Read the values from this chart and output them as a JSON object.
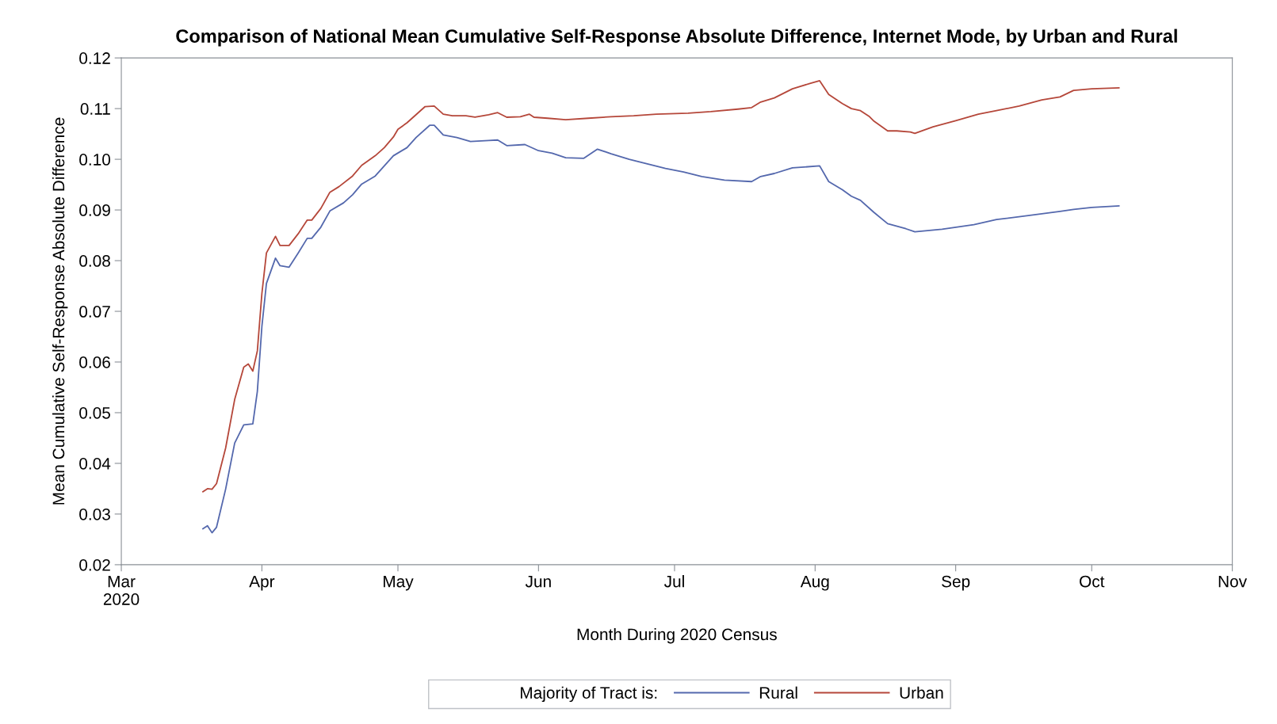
{
  "chart_data": {
    "type": "line",
    "title": "Comparison of National Mean Cumulative Self-Response Absolute Difference, Internet Mode, by Urban and Rural",
    "xlabel": "Month During 2020 Census",
    "ylabel": "Mean Cumulative Self-Response Absolute Difference",
    "legend_title": "Majority of Tract is:",
    "legend": "bottom",
    "grid": false,
    "marker": "none",
    "line_style": "solid",
    "xlim": [
      "2020-03-01",
      "2020-11-01"
    ],
    "xticks": [
      {
        "value": "2020-03-01",
        "label": "Mar\n2020"
      },
      {
        "value": "2020-04-01",
        "label": "Apr"
      },
      {
        "value": "2020-05-01",
        "label": "May"
      },
      {
        "value": "2020-06-01",
        "label": "Jun"
      },
      {
        "value": "2020-07-01",
        "label": "Jul"
      },
      {
        "value": "2020-08-01",
        "label": "Aug"
      },
      {
        "value": "2020-09-01",
        "label": "Sep"
      },
      {
        "value": "2020-10-01",
        "label": "Oct"
      },
      {
        "value": "2020-11-01",
        "label": "Nov"
      }
    ],
    "ylim": [
      0.02,
      0.12
    ],
    "yticks": [
      0.02,
      0.03,
      0.04,
      0.05,
      0.06,
      0.07,
      0.08,
      0.09,
      {
        "value": 0.1,
        "label": "0.10"
      },
      0.11,
      0.12
    ],
    "series": [
      {
        "name": "Rural",
        "color": "#5468ad",
        "x": [
          "2020-03-19",
          "2020-03-20",
          "2020-03-21",
          "2020-03-22",
          "2020-03-24",
          "2020-03-26",
          "2020-03-28",
          "2020-03-30",
          "2020-03-31",
          "2020-04-01",
          "2020-04-02",
          "2020-04-04",
          "2020-04-05",
          "2020-04-07",
          "2020-04-09",
          "2020-04-11",
          "2020-04-12",
          "2020-04-14",
          "2020-04-16",
          "2020-04-19",
          "2020-04-21",
          "2020-04-23",
          "2020-04-26",
          "2020-04-28",
          "2020-04-30",
          "2020-05-03",
          "2020-05-05",
          "2020-05-08",
          "2020-05-09",
          "2020-05-11",
          "2020-05-14",
          "2020-05-17",
          "2020-05-21",
          "2020-05-23",
          "2020-05-25",
          "2020-05-29",
          "2020-06-01",
          "2020-06-04",
          "2020-06-07",
          "2020-06-11",
          "2020-06-14",
          "2020-06-17",
          "2020-06-21",
          "2020-06-25",
          "2020-06-29",
          "2020-07-03",
          "2020-07-07",
          "2020-07-12",
          "2020-07-18",
          "2020-07-20",
          "2020-07-23",
          "2020-07-27",
          "2020-08-02",
          "2020-08-04",
          "2020-08-07",
          "2020-08-09",
          "2020-08-11",
          "2020-08-14",
          "2020-08-17",
          "2020-08-21",
          "2020-08-23",
          "2020-08-29",
          "2020-09-05",
          "2020-09-10",
          "2020-09-17",
          "2020-09-24",
          "2020-09-27",
          "2020-10-01",
          "2020-10-07"
        ],
        "values": [
          0.0271,
          0.0277,
          0.0263,
          0.0274,
          0.0349,
          0.044,
          0.0476,
          0.0478,
          0.0542,
          0.067,
          0.0755,
          0.0805,
          0.079,
          0.0787,
          0.0815,
          0.0844,
          0.0844,
          0.0866,
          0.0898,
          0.0914,
          0.093,
          0.0951,
          0.0967,
          0.0987,
          0.1007,
          0.1023,
          0.1043,
          0.1067,
          0.1067,
          0.1048,
          0.1043,
          0.1035,
          0.1037,
          0.1038,
          0.1027,
          0.1029,
          0.1017,
          0.1012,
          0.1003,
          0.1002,
          0.102,
          0.1011,
          0.1,
          0.0991,
          0.0982,
          0.0975,
          0.0966,
          0.0959,
          0.0956,
          0.0966,
          0.0972,
          0.0983,
          0.0987,
          0.0956,
          0.094,
          0.0927,
          0.0919,
          0.0895,
          0.0873,
          0.0863,
          0.0857,
          0.0862,
          0.0871,
          0.0881,
          0.0889,
          0.0897,
          0.0901,
          0.0905,
          0.0908
        ]
      },
      {
        "name": "Urban",
        "color": "#b5473a",
        "x": [
          "2020-03-19",
          "2020-03-20",
          "2020-03-21",
          "2020-03-22",
          "2020-03-24",
          "2020-03-26",
          "2020-03-28",
          "2020-03-29",
          "2020-03-30",
          "2020-03-31",
          "2020-04-01",
          "2020-04-02",
          "2020-04-04",
          "2020-04-05",
          "2020-04-07",
          "2020-04-09",
          "2020-04-11",
          "2020-04-12",
          "2020-04-14",
          "2020-04-16",
          "2020-04-18",
          "2020-04-21",
          "2020-04-23",
          "2020-04-26",
          "2020-04-28",
          "2020-04-30",
          "2020-05-01",
          "2020-05-03",
          "2020-05-05",
          "2020-05-07",
          "2020-05-09",
          "2020-05-11",
          "2020-05-13",
          "2020-05-16",
          "2020-05-18",
          "2020-05-21",
          "2020-05-23",
          "2020-05-25",
          "2020-05-28",
          "2020-05-30",
          "2020-05-31",
          "2020-06-03",
          "2020-06-07",
          "2020-06-12",
          "2020-06-17",
          "2020-06-22",
          "2020-06-27",
          "2020-07-04",
          "2020-07-09",
          "2020-07-15",
          "2020-07-18",
          "2020-07-20",
          "2020-07-23",
          "2020-07-27",
          "2020-07-31",
          "2020-08-02",
          "2020-08-04",
          "2020-08-07",
          "2020-08-09",
          "2020-08-11",
          "2020-08-13",
          "2020-08-14",
          "2020-08-17",
          "2020-08-19",
          "2020-08-22",
          "2020-08-23",
          "2020-08-27",
          "2020-09-01",
          "2020-09-06",
          "2020-09-10",
          "2020-09-15",
          "2020-09-20",
          "2020-09-24",
          "2020-09-27",
          "2020-10-01",
          "2020-10-07"
        ],
        "values": [
          0.0344,
          0.035,
          0.0349,
          0.036,
          0.043,
          0.0526,
          0.059,
          0.0596,
          0.0582,
          0.0622,
          0.0735,
          0.0815,
          0.0848,
          0.083,
          0.083,
          0.0853,
          0.088,
          0.088,
          0.0903,
          0.0935,
          0.0946,
          0.0967,
          0.0988,
          0.1007,
          0.1023,
          0.1044,
          0.1059,
          0.1072,
          0.1088,
          0.1104,
          0.1105,
          0.1089,
          0.1086,
          0.1086,
          0.1083,
          0.1088,
          0.1092,
          0.1083,
          0.1084,
          0.1089,
          0.1083,
          0.1081,
          0.1078,
          0.1081,
          0.1084,
          0.1086,
          0.1089,
          0.1091,
          0.1094,
          0.1099,
          0.1102,
          0.1113,
          0.1121,
          0.1139,
          0.115,
          0.1155,
          0.1128,
          0.111,
          0.11,
          0.1096,
          0.1084,
          0.1075,
          0.1056,
          0.1056,
          0.1054,
          0.1051,
          0.1064,
          0.1076,
          0.1089,
          0.1096,
          0.1105,
          0.1117,
          0.1123,
          0.1136,
          0.1139,
          0.1141
        ]
      }
    ]
  }
}
